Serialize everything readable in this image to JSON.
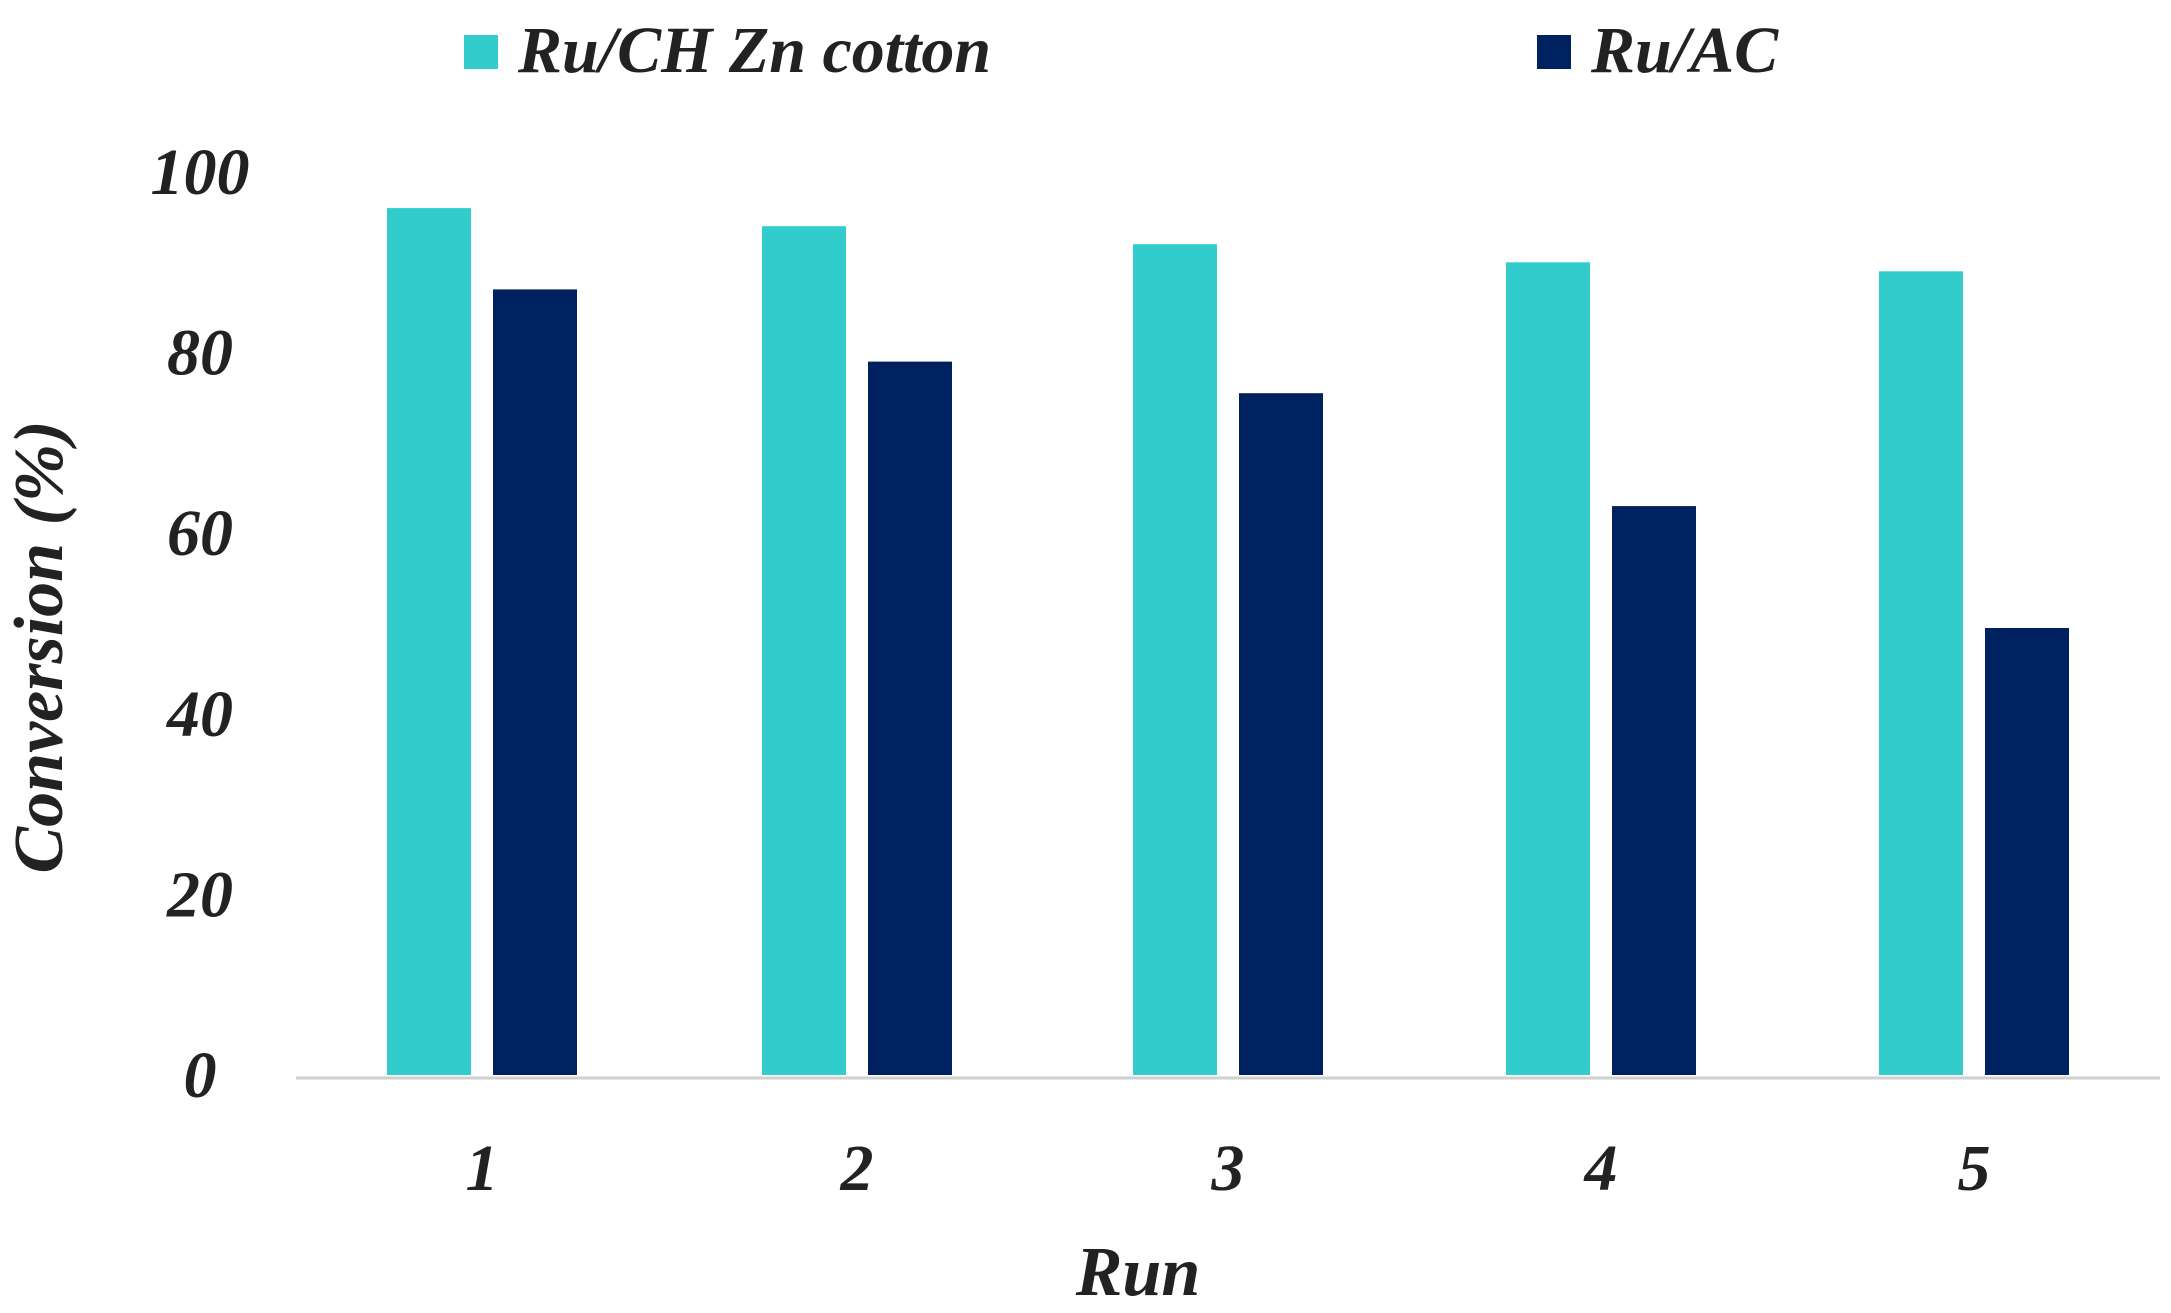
{
  "chart_data": {
    "type": "bar",
    "title": "",
    "xlabel": "Run",
    "ylabel": "Conversion (%)",
    "categories": [
      "1",
      "2",
      "3",
      "4",
      "5"
    ],
    "series": [
      {
        "name": "Ru/CH Zn cotton",
        "color": "#33CCCC",
        "values": [
          96,
          94,
          92,
          90,
          89
        ]
      },
      {
        "name": "Ru/AC",
        "color": "#00215F",
        "values": [
          87,
          79,
          75.5,
          63,
          49.5
        ]
      }
    ],
    "ylim": [
      0,
      100
    ],
    "yticks": [
      "0",
      "20",
      "40",
      "60",
      "80",
      "100"
    ],
    "ytick_values": [
      0,
      20,
      40,
      60,
      80,
      100
    ],
    "grid": false,
    "legend_position": "top"
  }
}
